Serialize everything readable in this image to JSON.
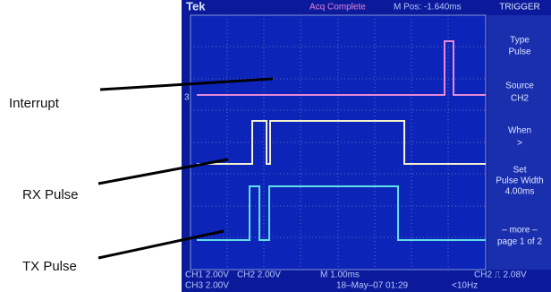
{
  "labels": {
    "interrupt": "Interrupt",
    "rx": "RX Pulse",
    "tx": "TX Pulse"
  },
  "header": {
    "brand": "Tek",
    "status": "Acq Complete",
    "position": "M Pos: -1.640ms",
    "menu_title": "TRIGGER"
  },
  "menu": [
    {
      "title": "Type",
      "value": "Pulse"
    },
    {
      "title": "Source",
      "value": "CH2"
    },
    {
      "title": "When",
      "value": ">"
    },
    {
      "title": "Set",
      "title2": "Pulse Width",
      "value": "4.00ms"
    },
    {
      "title": "– more –",
      "value": "page 1 of 2"
    }
  ],
  "channel_marker": "3",
  "footer": {
    "ch1": "CH1 2.00V",
    "ch2": "CH2 2.00V",
    "timebase": "M 1.00ms",
    "trigger": "CH2 ⎍ 2.08V",
    "ch3": "CH3 2.00V",
    "datetime": "18–May–07 01:29",
    "freq": "<10Hz"
  }
}
